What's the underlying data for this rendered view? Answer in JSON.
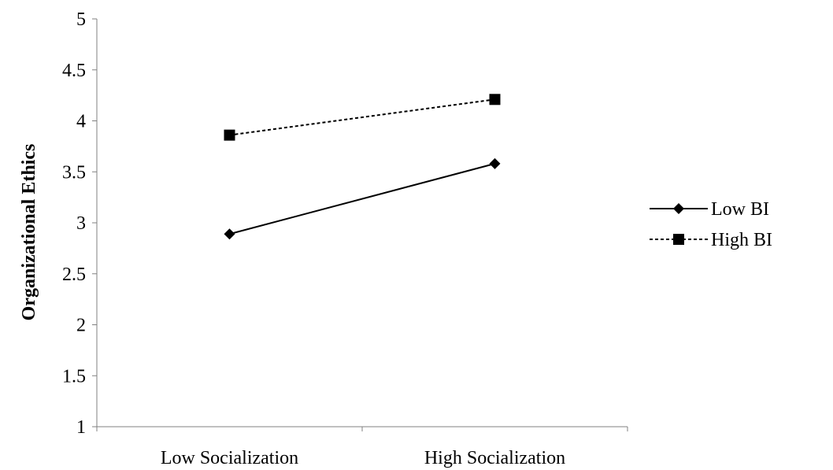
{
  "chart_data": {
    "type": "line",
    "categories": [
      "Low Socialization",
      "High Socialization"
    ],
    "series": [
      {
        "name": "Low BI",
        "values": [
          2.89,
          3.58
        ],
        "marker": "diamond",
        "line_style": "solid",
        "color": "#000000"
      },
      {
        "name": "High BI",
        "values": [
          3.86,
          4.21
        ],
        "marker": "square",
        "line_style": "dashed",
        "color": "#000000"
      }
    ],
    "xlabel": "",
    "ylabel": "Organizational Ethics",
    "ylim": [
      1,
      5
    ],
    "yticks": [
      "1",
      "1.5",
      "2",
      "2.5",
      "3",
      "3.5",
      "4",
      "4.5",
      "5"
    ],
    "grid": false,
    "legend": "right"
  }
}
